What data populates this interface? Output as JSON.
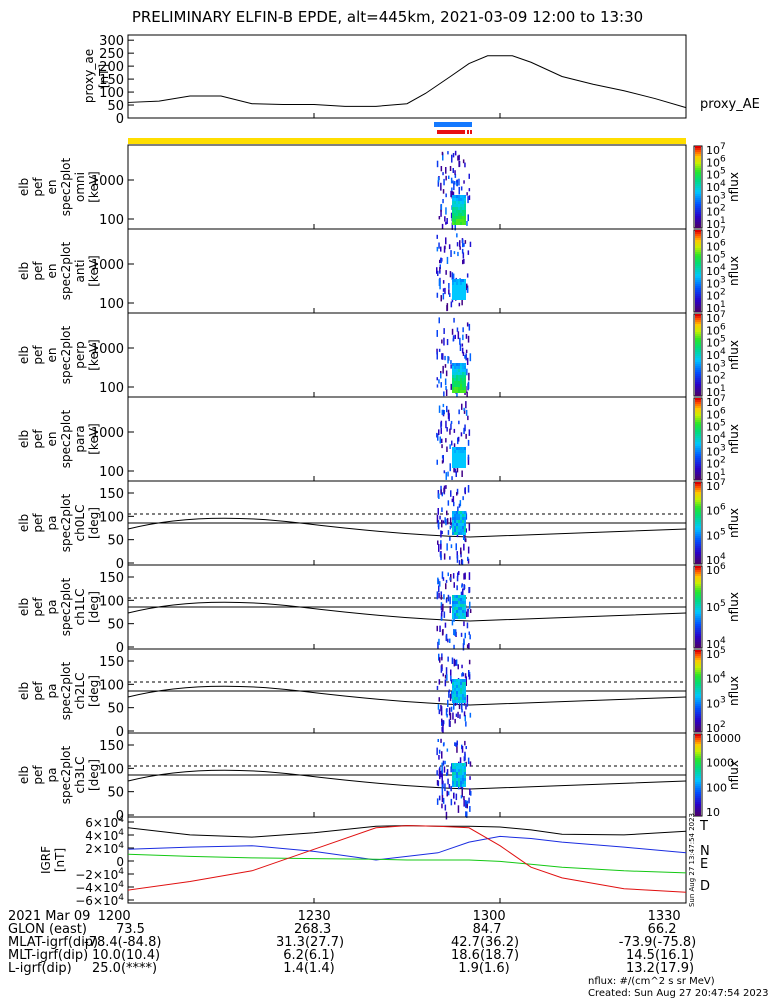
{
  "title": "PRELIMINARY ELFIN-B EPDE, alt=445km, 2021-03-09 12:00 to 13:30",
  "colors": {
    "bar_yellow": "#ffde00",
    "bar_blue": "#1479ff",
    "bar_red": "#e81010",
    "T": "#000000",
    "N": "#1a2ce0",
    "E": "#14c814",
    "D": "#e01010"
  },
  "chart_data": [
    {
      "type": "line",
      "name": "proxy_AE panel",
      "ylabel": [
        "proxy_ae",
        "[nT]"
      ],
      "yticks": [
        "300",
        "250",
        "200",
        "150",
        "100",
        "50",
        "0"
      ],
      "ylim": [
        0,
        320
      ],
      "legend": "proxy_AE",
      "x_minutes": [
        0,
        5,
        10,
        15,
        20,
        25,
        30,
        35,
        40,
        45,
        48,
        52,
        55,
        58,
        62,
        65,
        70,
        75,
        80,
        85,
        90
      ],
      "values": [
        60,
        65,
        85,
        85,
        55,
        52,
        52,
        45,
        45,
        55,
        95,
        160,
        210,
        240,
        240,
        215,
        160,
        130,
        105,
        75,
        40
      ]
    },
    {
      "type": "heatmap",
      "name": "spec omni",
      "ylabel": [
        "elb",
        "pef",
        "en",
        "spec2plot",
        "omni",
        "[keV]"
      ],
      "yticks": [
        "1000",
        "100"
      ],
      "cbar_ticks": [
        "10^7",
        "10^6",
        "10^5",
        "10^4",
        "10^3",
        "10^2",
        "10^1"
      ],
      "cbar_label": "nflux"
    },
    {
      "type": "heatmap",
      "name": "spec anti",
      "ylabel": [
        "elb",
        "pef",
        "en",
        "spec2plot",
        "anti",
        "[keV]"
      ],
      "yticks": [
        "1000",
        "100"
      ],
      "cbar_ticks": [
        "10^7",
        "10^6",
        "10^5",
        "10^4",
        "10^3",
        "10^2",
        "10^1"
      ],
      "cbar_label": "nflux"
    },
    {
      "type": "heatmap",
      "name": "spec perp",
      "ylabel": [
        "elb",
        "pef",
        "en",
        "spec2plot",
        "perp",
        "[keV]"
      ],
      "yticks": [
        "1000",
        "100"
      ],
      "cbar_ticks": [
        "10^7",
        "10^6",
        "10^5",
        "10^4",
        "10^3",
        "10^2",
        "10^1"
      ],
      "cbar_label": "nflux"
    },
    {
      "type": "heatmap",
      "name": "spec para",
      "ylabel": [
        "elb",
        "pef",
        "en",
        "spec2plot",
        "para",
        "[keV]"
      ],
      "yticks": [
        "1000",
        "100"
      ],
      "cbar_ticks": [
        "10^7",
        "10^6",
        "10^5",
        "10^4",
        "10^3",
        "10^2",
        "10^1"
      ],
      "cbar_label": "nflux"
    },
    {
      "type": "heatmap",
      "name": "pa ch0LC",
      "ylabel": [
        "elb",
        "pef",
        "pa",
        "spec2plot",
        "ch0LC",
        "[deg]"
      ],
      "yticks": [
        "150",
        "100",
        "50",
        "0"
      ],
      "cbar_ticks": [
        "10^7",
        "10^6",
        "10^5",
        "10^4"
      ],
      "cbar_label": "nflux"
    },
    {
      "type": "heatmap",
      "name": "pa ch1LC",
      "ylabel": [
        "elb",
        "pef",
        "pa",
        "spec2plot",
        "ch1LC",
        "[deg]"
      ],
      "yticks": [
        "150",
        "100",
        "50",
        "0"
      ],
      "cbar_ticks": [
        "10^6",
        "10^5",
        "10^4"
      ],
      "cbar_label": "nflux"
    },
    {
      "type": "heatmap",
      "name": "pa ch2LC",
      "ylabel": [
        "elb",
        "pef",
        "pa",
        "spec2plot",
        "ch2LC",
        "[deg]"
      ],
      "yticks": [
        "150",
        "100",
        "50",
        "0"
      ],
      "cbar_ticks": [
        "10^5",
        "10^4",
        "10^3",
        "10^2"
      ],
      "cbar_label": "nflux"
    },
    {
      "type": "heatmap",
      "name": "pa ch3LC",
      "ylabel": [
        "elb",
        "pef",
        "pa",
        "spec2plot",
        "ch3LC",
        "[deg]"
      ],
      "yticks": [
        "150",
        "100",
        "50",
        "0"
      ],
      "cbar_ticks": [
        "10000",
        "1000",
        "100",
        "10"
      ],
      "cbar_label": "nflux"
    },
    {
      "type": "line",
      "name": "IGRF panel",
      "ylabel": [
        "IGRF",
        "[nT]"
      ],
      "yticks": [
        "6×10^4",
        "4×10^4",
        "2×10^4",
        "0",
        "−2×10^4",
        "−4×10^4",
        "−6×10^4"
      ],
      "ylim": [
        -60000,
        60000
      ],
      "legend": [
        "T",
        "N",
        "E",
        "D"
      ],
      "x_minutes": [
        0,
        10,
        20,
        30,
        40,
        45,
        50,
        55,
        60,
        65,
        70,
        80,
        90
      ],
      "series": [
        {
          "name": "T",
          "values": [
            45000,
            35000,
            32000,
            38000,
            47000,
            48000,
            47000,
            47000,
            46000,
            42000,
            36000,
            35000,
            40000
          ]
        },
        {
          "name": "N",
          "values": [
            15000,
            18000,
            20000,
            12000,
            0,
            5000,
            10000,
            25000,
            33000,
            30000,
            25000,
            18000,
            10000
          ]
        },
        {
          "name": "E",
          "values": [
            8000,
            5000,
            3000,
            2000,
            1000,
            0,
            0,
            0,
            -2000,
            -6000,
            -10000,
            -15000,
            -18000
          ]
        },
        {
          "name": "D",
          "values": [
            -42000,
            -30000,
            -15000,
            15000,
            45000,
            48000,
            47000,
            45000,
            20000,
            -10000,
            -25000,
            -40000,
            -45000
          ]
        }
      ]
    },
    {
      "type": "table",
      "name": "time axis",
      "xticks": [
        "1200",
        "1230",
        "1300",
        "1330"
      ]
    }
  ],
  "footer": {
    "rows": [
      {
        "label": "2021 Mar 09",
        "cols": [
          "1200",
          "1230",
          "1300",
          "1330"
        ]
      },
      {
        "label": "GLON (east)",
        "cols": [
          "73.5",
          "268.3",
          "84.7",
          "66.2"
        ]
      },
      {
        "label": "MLAT-igrf(dip)",
        "cols": [
          "-78.4(-84.8)",
          "31.3(27.7)",
          "42.7(36.2)",
          "-73.9(-75.8)"
        ]
      },
      {
        "label": "MLT-igrf(dip)",
        "cols": [
          "10.0(10.4)",
          "6.2(6.1)",
          "18.6(18.7)",
          "14.5(16.1)"
        ]
      },
      {
        "label": "L-igrf(dip)",
        "cols": [
          "25.0(****)",
          "1.4(1.4)",
          "1.9(1.6)",
          "13.2(17.9)"
        ]
      }
    ],
    "unit_note": "nflux: #/(cm^2 s sr MeV)",
    "created": "Created: Sun Aug 27 20:47:54 2023",
    "side_stamp": "Sun Aug 27 13:47:54 2023"
  }
}
